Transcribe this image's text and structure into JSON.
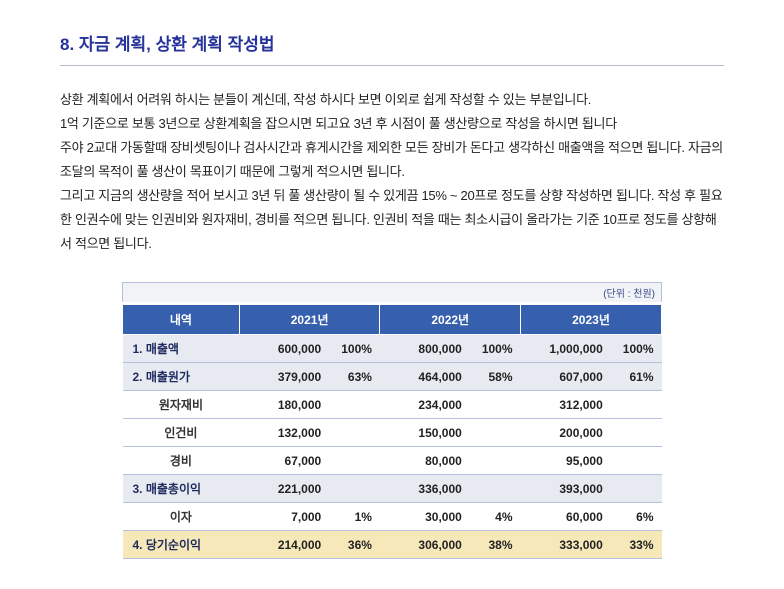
{
  "title": "8. 자금 계획, 상환 계획 작성법",
  "body_text": "상환 계획에서 어려워 하시는 분들이 계신데, 작성 하시다 보면 이외로 쉽게 작성할 수 있는 부분입니다.\n1억 기준으로 보통 3년으로 상환계획을 잡으시면 되고요 3년 후 시점이 풀 생산량으로 작성을 하시면 됩니다\n주야 2교대 가동할때 장비셋팅이나 검사시간과 휴게시간을 제외한 모든 장비가 돈다고 생각하신 매출액을 적으면 됩니다. 자금의 조달의 목적이 풀 생산이 목표이기 때문에 그렇게 적으시면 됩니다.\n그리고 지금의 생산량을 적어 보시고 3년 뒤 풀 생산량이 될 수 있게끔 15% ~ 20프로 정도를 상향 작성하면 됩니다. 작성 후 필요한 인권수에 맞는 인권비와 원자재비, 경비를 적으면 됩니다. 인권비 적을 때는 최소시급이 올라가는 기준 10프로 정도를 상향해서 적으면 됩니다.",
  "unit_label": "(단위 : 천원)",
  "table": {
    "headers": [
      "내역",
      "2021년",
      "2022년",
      "2023년"
    ],
    "rows": [
      {
        "type": "section",
        "label": "1. 매출액",
        "y1": "600,000",
        "p1": "100%",
        "y2": "800,000",
        "p2": "100%",
        "y3": "1,000,000",
        "p3": "100%"
      },
      {
        "type": "section",
        "label": "2. 매출원가",
        "y1": "379,000",
        "p1": "63%",
        "y2": "464,000",
        "p2": "58%",
        "y3": "607,000",
        "p3": "61%"
      },
      {
        "type": "sub",
        "label": "원자재비",
        "y1": "180,000",
        "p1": "",
        "y2": "234,000",
        "p2": "",
        "y3": "312,000",
        "p3": ""
      },
      {
        "type": "sub",
        "label": "인건비",
        "y1": "132,000",
        "p1": "",
        "y2": "150,000",
        "p2": "",
        "y3": "200,000",
        "p3": ""
      },
      {
        "type": "sub",
        "label": "경비",
        "y1": "67,000",
        "p1": "",
        "y2": "80,000",
        "p2": "",
        "y3": "95,000",
        "p3": ""
      },
      {
        "type": "section",
        "label": "3. 매출총이익",
        "y1": "221,000",
        "p1": "",
        "y2": "336,000",
        "p2": "",
        "y3": "393,000",
        "p3": ""
      },
      {
        "type": "sub",
        "label": "이자",
        "y1": "7,000",
        "p1": "1%",
        "y2": "30,000",
        "p2": "4%",
        "y3": "60,000",
        "p3": "6%"
      },
      {
        "type": "highlight",
        "label": "4. 당기순이익",
        "y1": "214,000",
        "p1": "36%",
        "y2": "306,000",
        "p2": "38%",
        "y3": "333,000",
        "p3": "33%"
      }
    ]
  },
  "colors": {
    "title": "#26349a",
    "header_bg": "#3660ad",
    "section_bg": "#e7eaf1",
    "highlight_bg": "#f6e8b8",
    "border": "#b6c1de"
  }
}
